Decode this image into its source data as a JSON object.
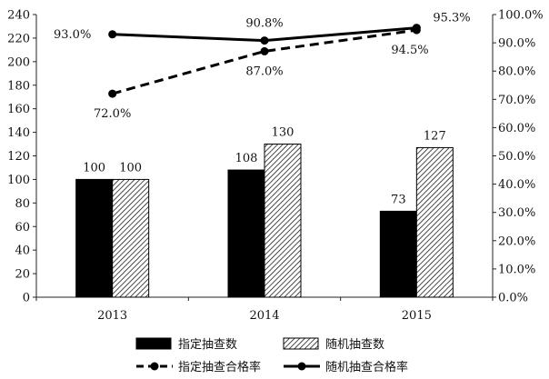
{
  "chart_data": {
    "type": "bar",
    "categories": [
      "2013",
      "2014",
      "2015"
    ],
    "bar_series": [
      {
        "name": "指定抽查数",
        "values": [
          100,
          108,
          73
        ],
        "value_labels": [
          "100",
          "108",
          "73"
        ],
        "fill": "solid-black"
      },
      {
        "name": "随机抽查数",
        "values": [
          100,
          130,
          127
        ],
        "value_labels": [
          "100",
          "130",
          "127"
        ],
        "fill": "hatched"
      }
    ],
    "line_series": [
      {
        "name": "指定抽查合格率",
        "values": [
          72.0,
          87.0,
          94.5
        ],
        "value_labels": [
          "72.0%",
          "87.0%",
          "94.5%"
        ],
        "style": "dashed"
      },
      {
        "name": "随机抽查合格率",
        "values": [
          93.0,
          90.8,
          95.3
        ],
        "value_labels": [
          "93.0%",
          "90.8%",
          "95.3%"
        ],
        "style": "solid"
      }
    ],
    "y_left": {
      "min": 0,
      "max": 240,
      "step": 20,
      "tick_labels": [
        "0",
        "20",
        "40",
        "60",
        "80",
        "100",
        "120",
        "140",
        "160",
        "180",
        "200",
        "220",
        "240"
      ]
    },
    "y_right": {
      "min": 0,
      "max": 100,
      "step": 10,
      "tick_labels": [
        "0.0%",
        "10.0%",
        "20.0%",
        "30.0%",
        "40.0%",
        "50.0%",
        "60.0%",
        "70.0%",
        "80.0%",
        "90.0%",
        "100.0%"
      ]
    },
    "grid": false,
    "legend_position": "bottom",
    "colors": {
      "bar_solid": "#000000",
      "bar_hatch": "#000000",
      "line": "#000000"
    }
  }
}
